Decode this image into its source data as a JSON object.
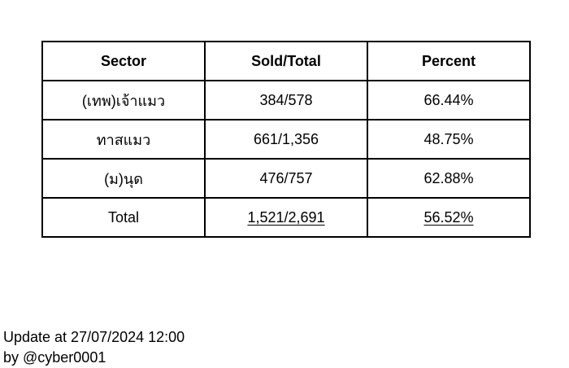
{
  "table": {
    "headers": [
      "Sector",
      "Sold/Total",
      "Percent"
    ],
    "rows": [
      {
        "sector": "(เทพ)เจ้าแมว",
        "sold_total": "384/578",
        "percent": "66.44%"
      },
      {
        "sector": "ทาสแมว",
        "sold_total": "661/1,356",
        "percent": "48.75%"
      },
      {
        "sector": "(ม)นุด",
        "sold_total": "476/757",
        "percent": "62.88%"
      }
    ],
    "total": {
      "label": "Total",
      "sold_total": "1,521/2,691",
      "percent": "56.52%"
    }
  },
  "footer": {
    "update_text": "Update at 27/07/2024 12:00",
    "author_text": "by @cyber0001"
  }
}
